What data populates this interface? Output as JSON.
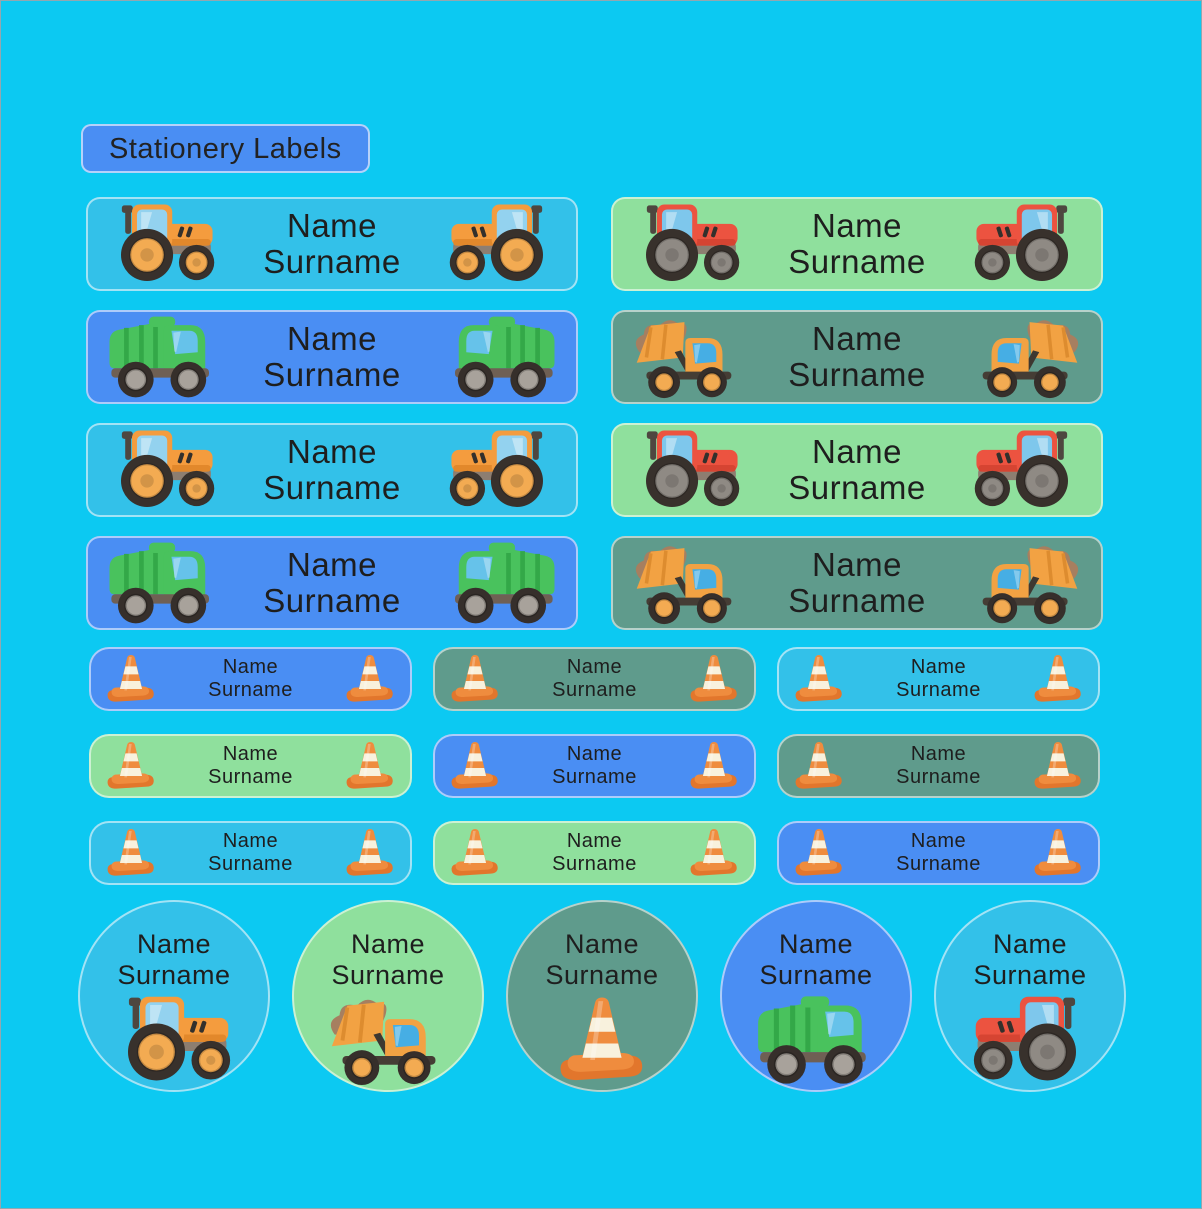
{
  "page": {
    "title": "Stationery Labels",
    "background": "#0cc9f2",
    "title_chip_bg": "#4a8ef3",
    "text_color": "#1e1e1e"
  },
  "palette": {
    "cyan_label": "#33c1e9",
    "blue_label": "#4a8ef3",
    "green_label": "#8fe09d",
    "teal_label": "#5f9b8c",
    "label_border": "rgba(255,255,255,0.55)",
    "vehicle_orange": "#f49c3e",
    "vehicle_red": "#ec5340",
    "vehicle_green": "#49c25d",
    "cone_orange": "#ef8c3e"
  },
  "large_labels": [
    {
      "name": "Name",
      "surname": "Surname",
      "bg_hex": "#33c1e9",
      "vehicle": "tractor-orange"
    },
    {
      "name": "Name",
      "surname": "Surname",
      "bg_hex": "#8fe09d",
      "vehicle": "tractor-red"
    },
    {
      "name": "Name",
      "surname": "Surname",
      "bg_hex": "#4a8ef3",
      "vehicle": "truck-green"
    },
    {
      "name": "Name",
      "surname": "Surname",
      "bg_hex": "#5f9b8c",
      "vehicle": "truck-orange"
    },
    {
      "name": "Name",
      "surname": "Surname",
      "bg_hex": "#33c1e9",
      "vehicle": "tractor-orange"
    },
    {
      "name": "Name",
      "surname": "Surname",
      "bg_hex": "#8fe09d",
      "vehicle": "tractor-red"
    },
    {
      "name": "Name",
      "surname": "Surname",
      "bg_hex": "#4a8ef3",
      "vehicle": "truck-green"
    },
    {
      "name": "Name",
      "surname": "Surname",
      "bg_hex": "#5f9b8c",
      "vehicle": "truck-orange"
    }
  ],
  "small_labels": [
    {
      "name": "Name",
      "surname": "Surname",
      "bg_hex": "#4a8ef3",
      "vehicle": "traffic-cone"
    },
    {
      "name": "Name",
      "surname": "Surname",
      "bg_hex": "#5f9b8c",
      "vehicle": "traffic-cone"
    },
    {
      "name": "Name",
      "surname": "Surname",
      "bg_hex": "#33c1e9",
      "vehicle": "traffic-cone"
    },
    {
      "name": "Name",
      "surname": "Surname",
      "bg_hex": "#8fe09d",
      "vehicle": "traffic-cone"
    },
    {
      "name": "Name",
      "surname": "Surname",
      "bg_hex": "#4a8ef3",
      "vehicle": "traffic-cone"
    },
    {
      "name": "Name",
      "surname": "Surname",
      "bg_hex": "#5f9b8c",
      "vehicle": "traffic-cone"
    },
    {
      "name": "Name",
      "surname": "Surname",
      "bg_hex": "#33c1e9",
      "vehicle": "traffic-cone"
    },
    {
      "name": "Name",
      "surname": "Surname",
      "bg_hex": "#8fe09d",
      "vehicle": "traffic-cone"
    },
    {
      "name": "Name",
      "surname": "Surname",
      "bg_hex": "#4a8ef3",
      "vehicle": "traffic-cone"
    }
  ],
  "round_labels": [
    {
      "name": "Name",
      "surname": "Surname",
      "bg_hex": "#33c1e9",
      "vehicle": "tractor-orange"
    },
    {
      "name": "Name",
      "surname": "Surname",
      "bg_hex": "#8fe09d",
      "vehicle": "truck-orange"
    },
    {
      "name": "Name",
      "surname": "Surname",
      "bg_hex": "#5f9b8c",
      "vehicle": "traffic-cone"
    },
    {
      "name": "Name",
      "surname": "Surname",
      "bg_hex": "#4a8ef3",
      "vehicle": "truck-green"
    },
    {
      "name": "Name",
      "surname": "Surname",
      "bg_hex": "#33c1e9",
      "vehicle": "tractor-red"
    }
  ]
}
